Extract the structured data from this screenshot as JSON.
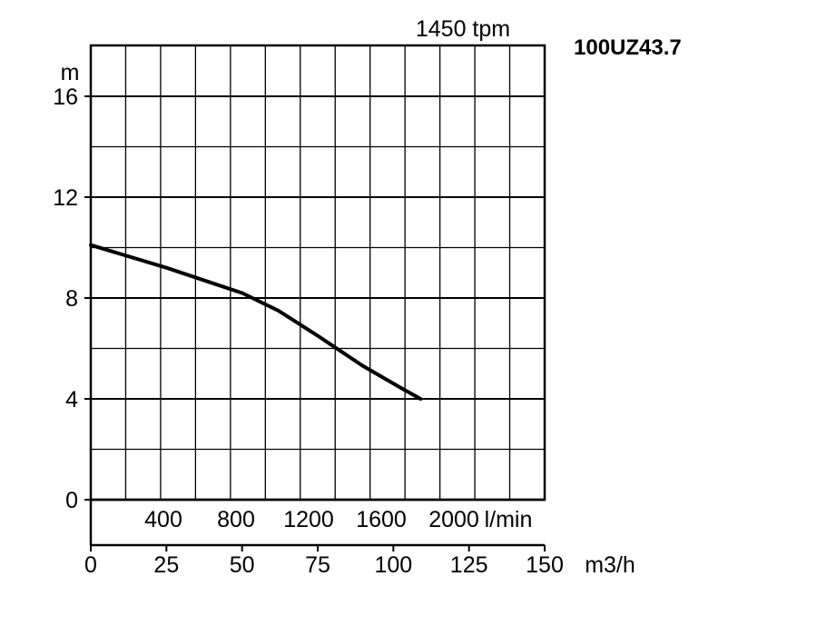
{
  "chart_data": {
    "type": "line",
    "title": "1450 tpm",
    "model": "100UZ43.7",
    "ylabel": "m",
    "y_ticks": [
      0,
      4,
      8,
      12,
      16
    ],
    "ylim": [
      0,
      16
    ],
    "xlabel": "m3/h",
    "x_ticks": [
      0,
      25,
      50,
      75,
      100,
      125,
      150
    ],
    "xlim": [
      0,
      150
    ],
    "secondary_x_ticks": [
      "400",
      "800",
      "1200",
      "1600",
      "2000"
    ],
    "secondary_x_unit": "l/min",
    "grid": true,
    "series": [
      {
        "x": [
          0,
          25,
          50,
          62,
          75,
          90,
          103,
          109
        ],
        "y": [
          10.1,
          9.2,
          8.2,
          7.5,
          6.5,
          5.3,
          4.4,
          4.0
        ]
      }
    ]
  }
}
